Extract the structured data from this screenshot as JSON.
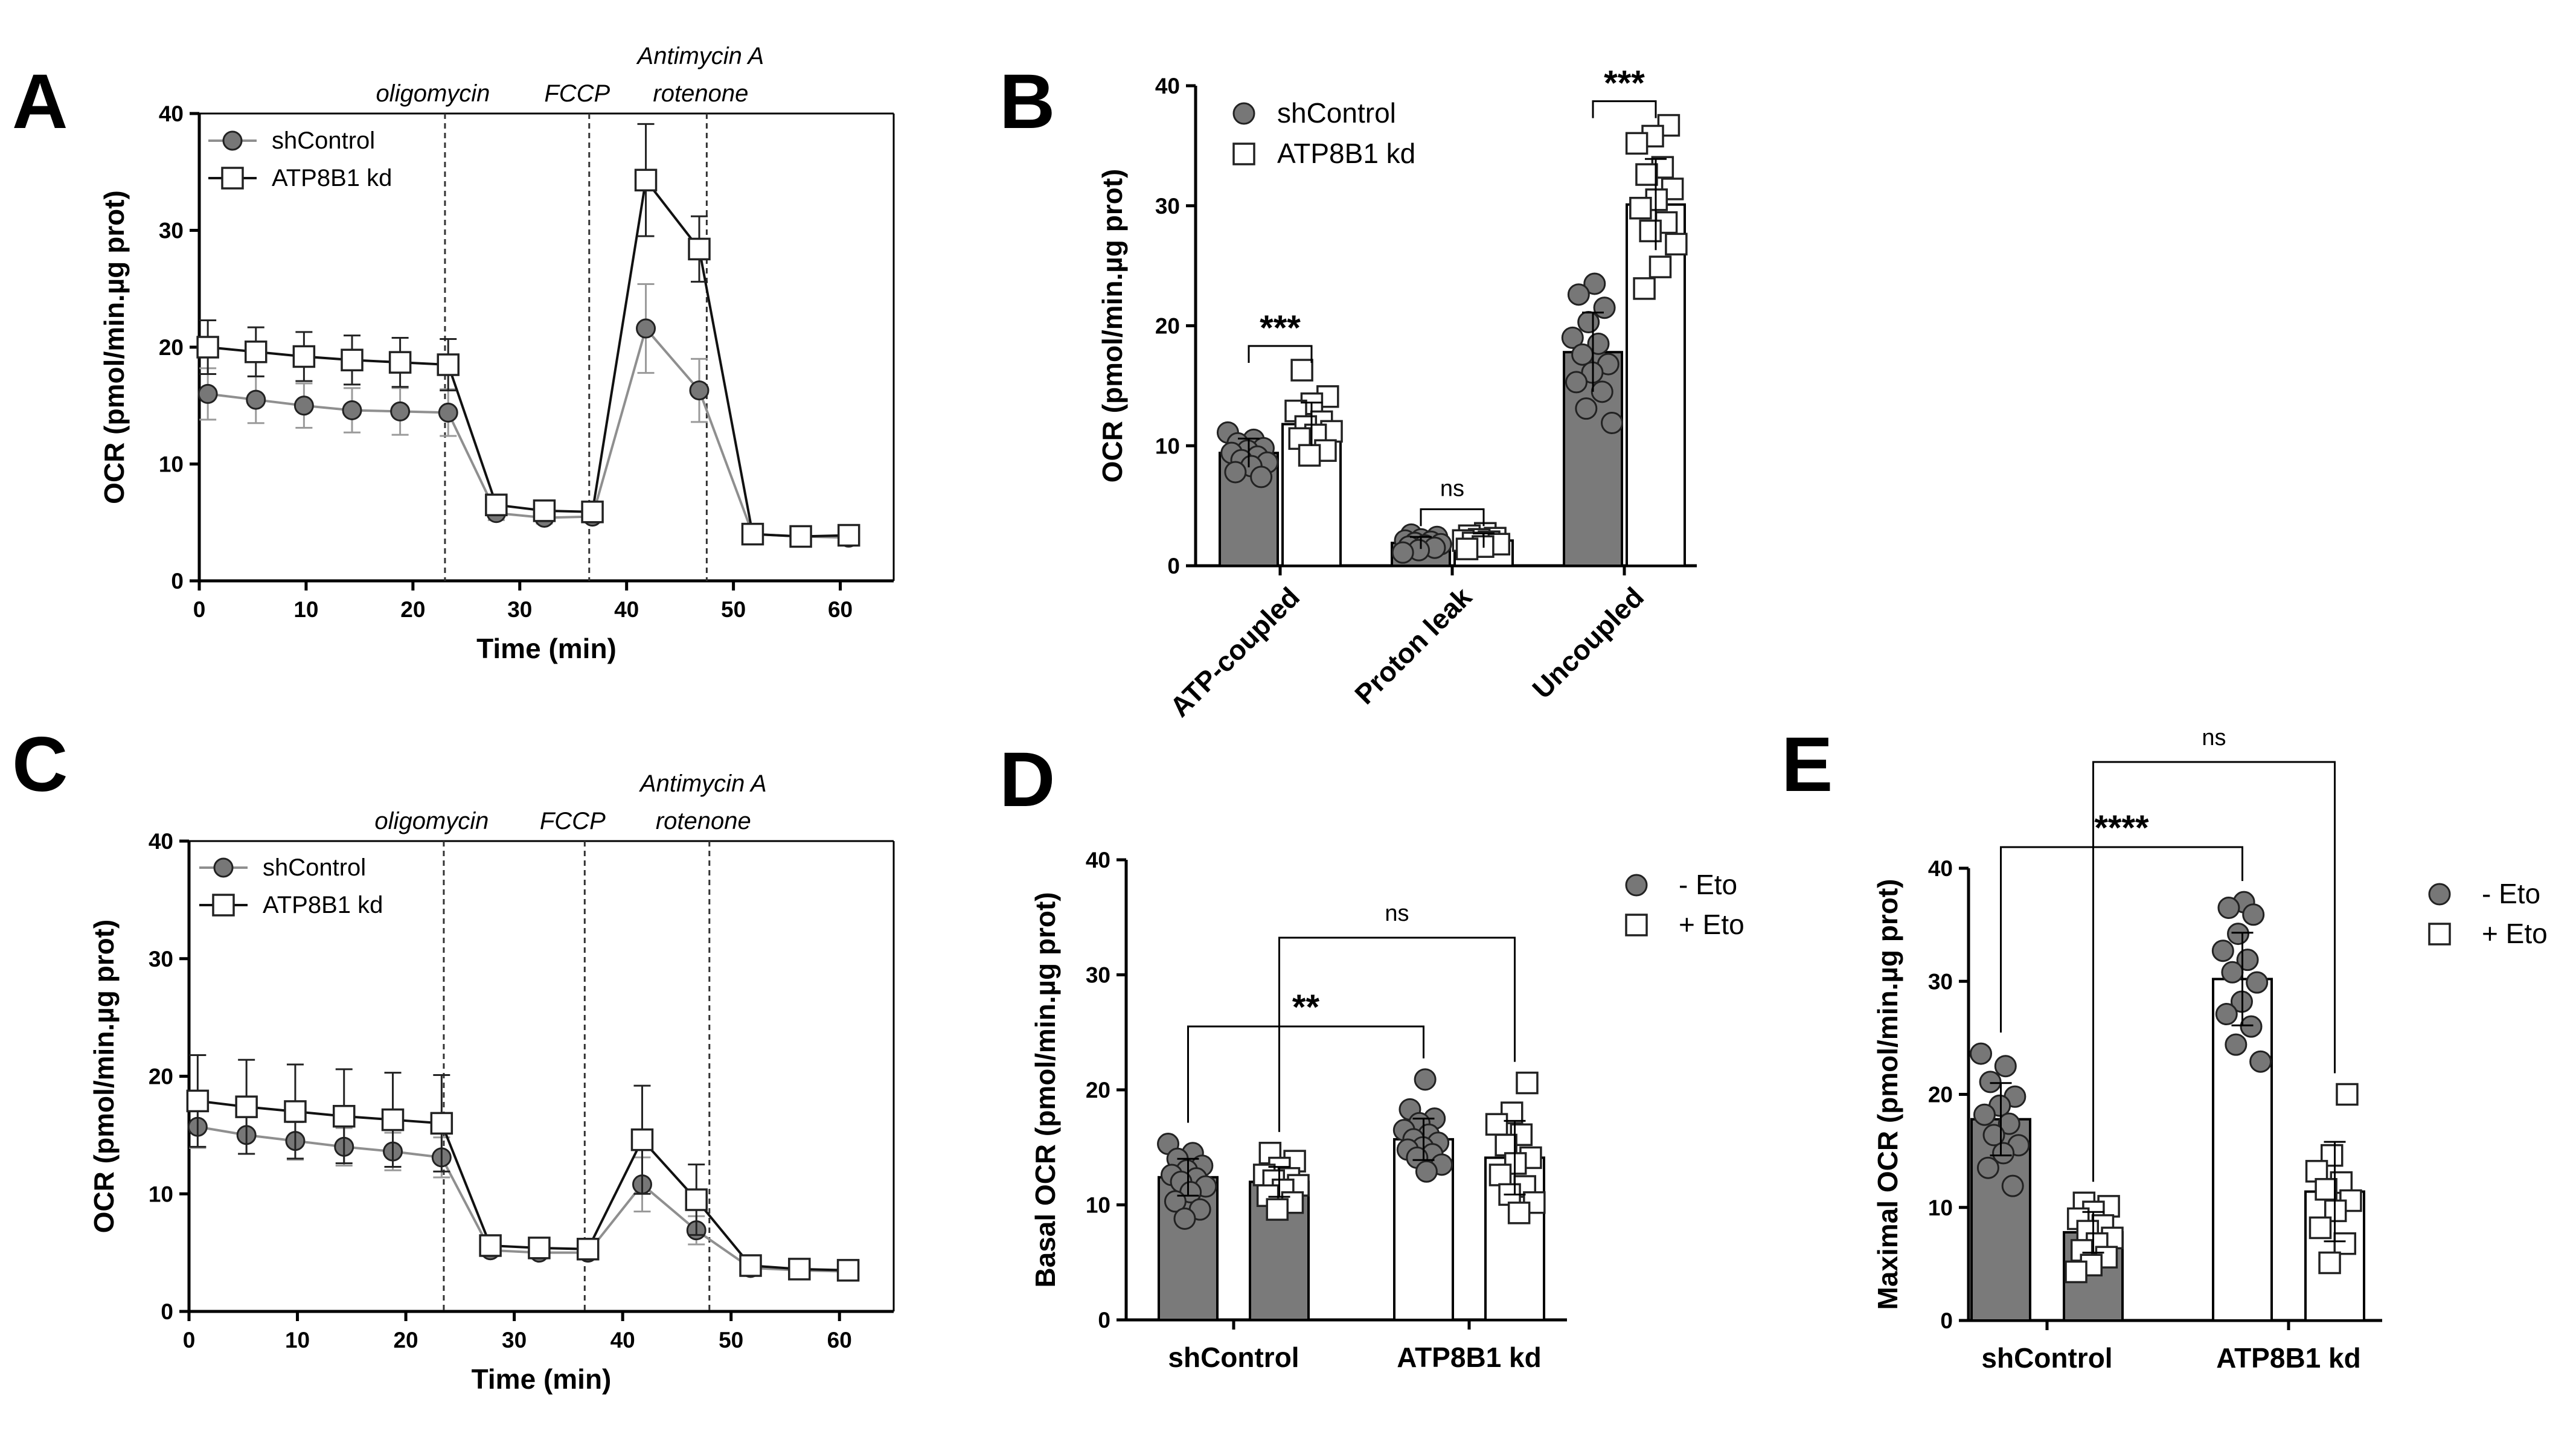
{
  "chart_data": [
    {
      "panel": "A",
      "type": "line",
      "title": "",
      "xlabel": "Time (min)",
      "ylabel": "OCR (pmol/min.µg prot)",
      "xlim": [
        0,
        65
      ],
      "ylim": [
        0,
        40
      ],
      "xticks": [
        "0",
        "10",
        "20",
        "30",
        "40",
        "50",
        "60"
      ],
      "yticks": [
        "0",
        "10",
        "20",
        "30",
        "40"
      ],
      "injections": [
        {
          "time": 23,
          "labels": [
            "oligomycin"
          ]
        },
        {
          "time": 36.5,
          "labels": [
            "FCCP"
          ]
        },
        {
          "time": 47.5,
          "labels": [
            "Antimycin A",
            "rotenone"
          ]
        }
      ],
      "x": [
        0.8,
        5.3,
        9.8,
        14.3,
        18.8,
        23.3,
        27.8,
        32.3,
        36.8,
        41.8,
        46.8,
        51.8,
        56.3,
        60.8
      ],
      "series": [
        {
          "name": "shControl",
          "marker": "circle",
          "values": [
            16.0,
            15.5,
            15.0,
            14.6,
            14.5,
            14.4,
            5.8,
            5.4,
            5.5,
            21.6,
            16.3,
            4.0,
            3.8,
            3.7
          ],
          "err": [
            2.2,
            2.0,
            1.9,
            1.9,
            2.0,
            2.0,
            0.6,
            0.5,
            0.5,
            3.8,
            2.7,
            0.5,
            0.5,
            0.5
          ]
        },
        {
          "name": "ATP8B1 kd",
          "marker": "square",
          "values": [
            20.0,
            19.6,
            19.2,
            18.9,
            18.7,
            18.5,
            6.5,
            6.0,
            5.9,
            34.3,
            28.4,
            4.0,
            3.8,
            3.9
          ],
          "err": [
            2.3,
            2.1,
            2.1,
            2.1,
            2.1,
            2.2,
            0.6,
            0.5,
            0.5,
            4.8,
            2.8,
            0.5,
            0.5,
            0.5
          ]
        }
      ]
    },
    {
      "panel": "B",
      "type": "bar",
      "title": "",
      "xlabel": "",
      "ylabel": "OCR (pmol/min.µg prot)",
      "ylim": [
        0,
        40
      ],
      "yticks": [
        "0",
        "10",
        "20",
        "30",
        "40"
      ],
      "categories": [
        "ATP-coupled",
        "Proton leak",
        "Uncoupled"
      ],
      "series": [
        {
          "name": "shControl",
          "marker": "circle",
          "color": "#7a7a7a",
          "values": [
            9.4,
            1.9,
            17.8
          ],
          "sd": [
            1.2,
            0.5,
            3.3
          ],
          "points": [
            [
              11.1,
              10.5,
              10.2,
              9.8,
              9.6,
              9.4,
              9.1,
              8.8,
              8.6,
              8.3,
              7.8,
              7.4
            ],
            [
              2.6,
              2.4,
              2.2,
              2.1,
              2.0,
              1.9,
              1.8,
              1.7,
              1.6,
              1.5,
              1.3,
              1.1
            ],
            [
              23.5,
              22.6,
              21.5,
              20.3,
              19.0,
              18.5,
              17.6,
              16.8,
              16.1,
              15.3,
              14.5,
              13.1,
              11.9
            ]
          ]
        },
        {
          "name": "ATP8B1 kd",
          "marker": "square",
          "color": "#ffffff",
          "values": [
            11.8,
            2.1,
            30.1
          ],
          "sd": [
            1.8,
            0.6,
            3.8
          ],
          "points": [
            [
              16.3,
              14.1,
              13.5,
              12.9,
              12.0,
              11.6,
              11.2,
              10.9,
              10.6,
              9.6,
              9.2
            ],
            [
              2.7,
              2.5,
              2.3,
              2.2,
              2.1,
              2.0,
              1.9,
              1.8,
              1.6,
              1.4
            ],
            [
              36.7,
              35.8,
              35.2,
              33.2,
              32.6,
              31.4,
              30.5,
              29.8,
              28.6,
              27.9,
              26.8,
              24.9,
              23.1
            ]
          ]
        }
      ],
      "comparisons": [
        {
          "category": "ATP-coupled",
          "label": "***"
        },
        {
          "category": "Proton leak",
          "label": "ns"
        },
        {
          "category": "Uncoupled",
          "label": "***"
        }
      ]
    },
    {
      "panel": "C",
      "type": "line",
      "title": "",
      "xlabel": "Time (min)",
      "ylabel": "OCR (pmol/min.µg prot)",
      "xlim": [
        0,
        65
      ],
      "ylim": [
        0,
        40
      ],
      "xticks": [
        "0",
        "10",
        "20",
        "30",
        "40",
        "50",
        "60"
      ],
      "yticks": [
        "0",
        "10",
        "20",
        "30",
        "40"
      ],
      "injections": [
        {
          "time": 23.5,
          "labels": [
            "oligomycin"
          ]
        },
        {
          "time": 36.5,
          "labels": [
            "FCCP"
          ]
        },
        {
          "time": 48,
          "labels": [
            "Antimycin A",
            "rotenone"
          ]
        }
      ],
      "x": [
        0.8,
        5.3,
        9.8,
        14.3,
        18.8,
        23.3,
        27.8,
        32.3,
        36.8,
        41.8,
        46.8,
        51.8,
        56.3,
        60.8
      ],
      "series": [
        {
          "name": "shControl",
          "marker": "circle",
          "values": [
            15.7,
            15.0,
            14.5,
            14.0,
            13.6,
            13.1,
            5.2,
            5.0,
            5.0,
            10.8,
            6.9,
            3.7,
            3.5,
            3.4
          ],
          "err": [
            1.8,
            1.6,
            1.6,
            1.6,
            1.6,
            1.7,
            0.5,
            0.5,
            0.5,
            2.3,
            1.2,
            0.4,
            0.4,
            0.4
          ]
        },
        {
          "name": "ATP8B1 kd",
          "marker": "square",
          "values": [
            17.9,
            17.4,
            17.0,
            16.6,
            16.3,
            16.0,
            5.6,
            5.4,
            5.3,
            14.6,
            9.5,
            3.9,
            3.6,
            3.5
          ],
          "err": [
            3.9,
            4.0,
            4.0,
            4.0,
            4.0,
            4.1,
            0.6,
            0.5,
            0.5,
            4.6,
            3.0,
            0.5,
            0.5,
            0.5
          ]
        }
      ]
    },
    {
      "panel": "D",
      "type": "bar",
      "title": "",
      "xlabel": "",
      "ylabel": "Basal OCR (pmol/min.µg prot)",
      "ylim": [
        0,
        40
      ],
      "yticks": [
        "0",
        "10",
        "20",
        "30",
        "40"
      ],
      "categories": [
        "shControl",
        "ATP8B1 kd"
      ],
      "series": [
        {
          "name": "- Eto",
          "marker": "circle",
          "colors": [
            "#7a7a7a",
            "#ffffff"
          ],
          "values": [
            12.4,
            15.7
          ],
          "sd": [
            1.6,
            1.8
          ],
          "points": [
            [
              15.3,
              14.5,
              14.0,
              13.4,
              13.0,
              12.6,
              12.3,
              12.0,
              11.6,
              11.1,
              10.3,
              9.6,
              8.8
            ],
            [
              20.9,
              18.3,
              17.5,
              17.1,
              16.5,
              16.1,
              15.7,
              15.4,
              15.0,
              14.8,
              14.4,
              14.1,
              13.5,
              12.9
            ]
          ]
        },
        {
          "name": "+ Eto",
          "marker": "square",
          "colors": [
            "#7a7a7a",
            "#ffffff"
          ],
          "values": [
            12.0,
            14.1
          ],
          "sd": [
            1.3,
            3.2
          ],
          "points": [
            [
              14.5,
              13.8,
              13.2,
              12.6,
              12.3,
              12.1,
              11.7,
              11.3,
              10.8,
              10.2,
              9.6
            ],
            [
              20.6,
              18.0,
              17.0,
              16.1,
              15.2,
              14.1,
              13.6,
              12.6,
              11.6,
              10.9,
              10.2,
              9.3
            ]
          ]
        }
      ],
      "comparisons": [
        {
          "from": "shControl - Eto",
          "to": "ATP8B1 kd - Eto",
          "label": "**"
        },
        {
          "from": "shControl + Eto",
          "to": "ATP8B1 kd + Eto",
          "label": "ns"
        }
      ]
    },
    {
      "panel": "E",
      "type": "bar",
      "title": "",
      "xlabel": "",
      "ylabel": "Maximal OCR (pmol/min.µg prot)",
      "ylim": [
        0,
        40
      ],
      "yticks": [
        "0",
        "10",
        "20",
        "30",
        "40"
      ],
      "categories": [
        "shControl",
        "ATP8B1 kd"
      ],
      "series": [
        {
          "name": "- Eto",
          "marker": "circle",
          "colors": [
            "#7a7a7a",
            "#ffffff"
          ],
          "values": [
            17.8,
            30.2
          ],
          "sd": [
            3.2,
            4.1
          ],
          "points": [
            [
              23.6,
              22.5,
              21.1,
              19.8,
              19.0,
              18.2,
              17.4,
              16.4,
              15.5,
              14.8,
              13.5,
              11.9
            ],
            [
              37.0,
              36.5,
              35.9,
              34.2,
              32.7,
              31.9,
              30.8,
              29.9,
              28.2,
              27.1,
              26.0,
              24.4,
              22.9
            ]
          ]
        },
        {
          "name": "+ Eto",
          "marker": "square",
          "colors": [
            "#7a7a7a",
            "#ffffff"
          ],
          "values": [
            7.8,
            11.4
          ],
          "sd": [
            1.8,
            4.4
          ],
          "points": [
            [
              10.4,
              10.1,
              9.6,
              9.0,
              8.4,
              7.9,
              7.3,
              6.8,
              6.2,
              5.6,
              4.9,
              4.3
            ],
            [
              20.0,
              14.6,
              13.2,
              12.2,
              11.6,
              10.6,
              9.7,
              8.2,
              6.8,
              5.1
            ]
          ]
        }
      ],
      "comparisons": [
        {
          "from": "shControl - Eto",
          "to": "ATP8B1 kd - Eto",
          "label": "****"
        },
        {
          "from": "shControl + Eto",
          "to": "ATP8B1 kd + Eto",
          "label": "ns"
        }
      ]
    }
  ]
}
